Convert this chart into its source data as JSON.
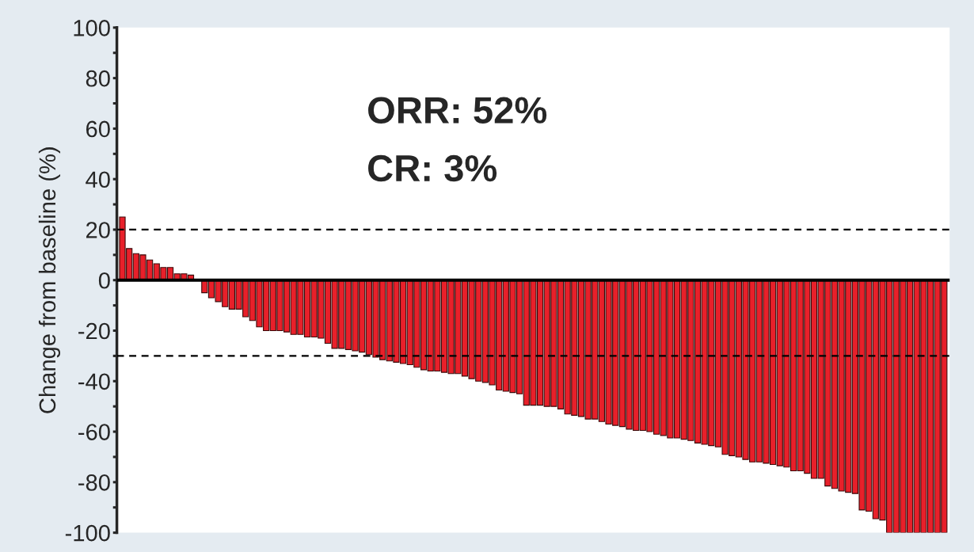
{
  "chart_data": {
    "type": "bar",
    "ylabel": "Change from baseline (%)",
    "categories": [
      null,
      null,
      null,
      null,
      null,
      null,
      null,
      null,
      null,
      null,
      null,
      null,
      null,
      null,
      null,
      null,
      null,
      null,
      null,
      null,
      null,
      null,
      null,
      null,
      null,
      null,
      null,
      null,
      null,
      null,
      null,
      null,
      null,
      null,
      null,
      null,
      null,
      null,
      null,
      null,
      null,
      null,
      null,
      null,
      null,
      null,
      null,
      null,
      null,
      null,
      null,
      null,
      null,
      null,
      null,
      null,
      null,
      null,
      null,
      null,
      null,
      null,
      null,
      null,
      null,
      null,
      null,
      null,
      null,
      null,
      null,
      null,
      null,
      null,
      null,
      null,
      null,
      null,
      null,
      null,
      null,
      null,
      null,
      null,
      null,
      null,
      null,
      null,
      null,
      null,
      null,
      null,
      null,
      null,
      null,
      null,
      null,
      null,
      null,
      null,
      null,
      null,
      null,
      null,
      null,
      null,
      null,
      null,
      null,
      null,
      null,
      null,
      null,
      null,
      null,
      null,
      null,
      null,
      null,
      null,
      null
    ],
    "values": [
      25,
      12.5,
      10.5,
      10,
      8,
      6.5,
      5,
      5,
      2.5,
      2.5,
      2,
      null,
      -5,
      -7,
      -8.5,
      -10.5,
      -11.5,
      -11.5,
      -14.5,
      -16,
      -18.5,
      -20,
      -20,
      -20,
      -20.5,
      -21.5,
      -21.5,
      -22.5,
      -22.5,
      -23,
      -25,
      -27,
      -27,
      -27.5,
      -28,
      -28.5,
      -29.5,
      -30.5,
      -31.5,
      -32,
      -32.5,
      -33,
      -33.5,
      -34.5,
      -35.5,
      -36,
      -36,
      -36.5,
      -37,
      -37,
      -38,
      -39,
      -40,
      -40.5,
      -41.5,
      -43.5,
      -44,
      -44.5,
      -45,
      -49.5,
      -49.5,
      -49.5,
      -50,
      -50,
      -51,
      -53,
      -53.5,
      -54,
      -55,
      -55,
      -56,
      -57,
      -57.5,
      -58,
      -59,
      -59.5,
      -59.5,
      -60,
      -61,
      -61.5,
      -62.5,
      -62.5,
      -63,
      -63.5,
      -64.5,
      -65,
      -65.5,
      -66,
      -69,
      -69.5,
      -70,
      -71,
      -72,
      -72,
      -72.5,
      -73,
      -73.5,
      -74,
      -75.5,
      -75.5,
      -76.5,
      -78.5,
      -78.5,
      -81.5,
      -82.5,
      -83.5,
      -84,
      -84.5,
      -91,
      -91.5,
      -94.5,
      -95,
      -100,
      -100,
      -100,
      -100,
      -100,
      -100,
      -100,
      -100,
      -100
    ],
    "color": "#e8202a",
    "ylim": [
      -100,
      100
    ],
    "yticks": [
      -100,
      {
        "value": -90,
        "label": null
      },
      -80,
      {
        "value": -70,
        "label": null
      },
      -60,
      {
        "value": -50,
        "label": null
      },
      -40,
      {
        "value": -30,
        "label": null
      },
      -20,
      {
        "value": -10,
        "label": null
      },
      0,
      {
        "value": 10,
        "label": null
      },
      20,
      {
        "value": 30,
        "label": null
      },
      40,
      {
        "value": 50,
        "label": null
      },
      60,
      {
        "value": 70,
        "label": null
      },
      80,
      {
        "value": 90,
        "label": null
      },
      100
    ],
    "ref_lines": [
      {
        "axis": "y",
        "value": 20,
        "line_style": "dashed"
      },
      {
        "axis": "y",
        "value": -30,
        "line_style": "dashed"
      }
    ],
    "annotations": [
      "ORR: 52%",
      "CR: 3%"
    ],
    "tick_labels": "y",
    "grid": false,
    "legend": false
  }
}
